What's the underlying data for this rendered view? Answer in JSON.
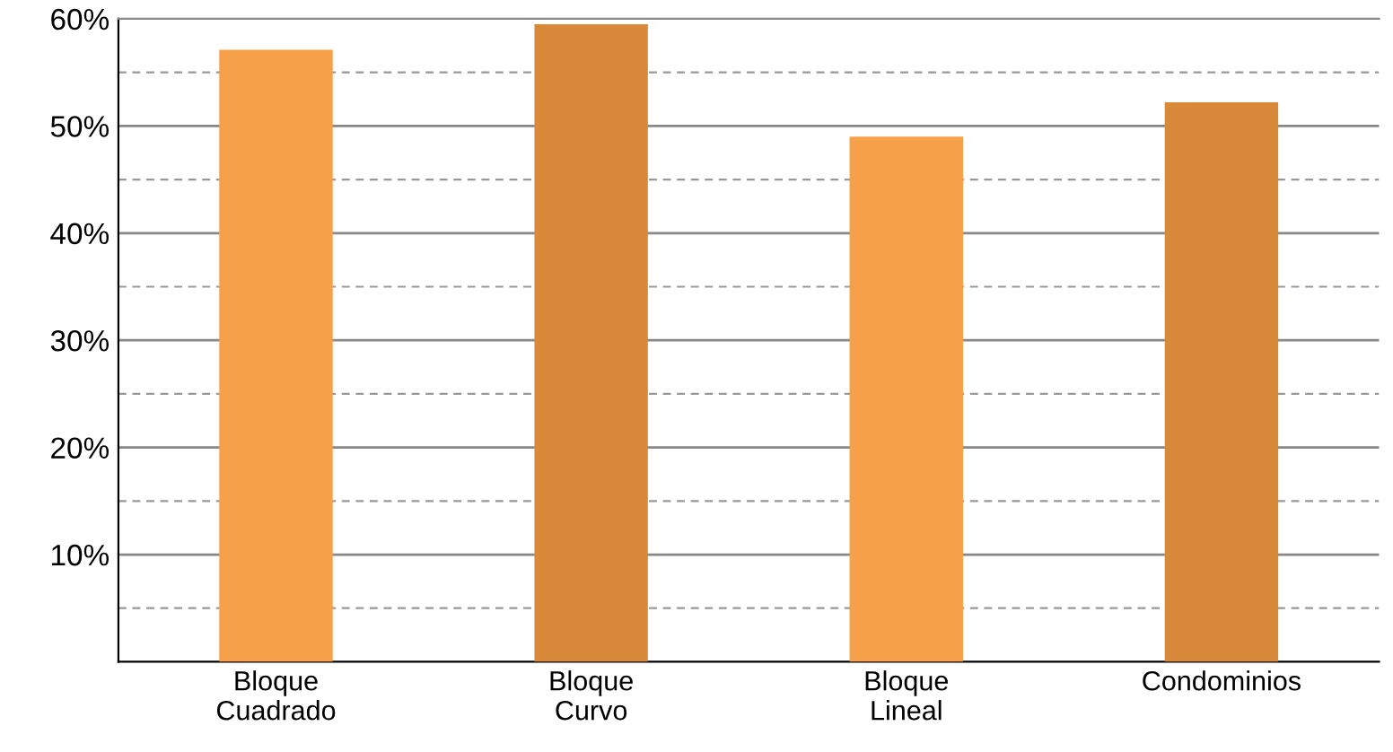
{
  "chart_data": {
    "type": "bar",
    "categories": [
      "Bloque\nCuadrado",
      "Bloque\nCurvo",
      "Bloque\nLineal",
      "Condominios"
    ],
    "values": [
      57.1,
      59.5,
      49.0,
      52.2
    ],
    "colors": [
      "#f7a04a",
      "#d8893a",
      "#f7a04a",
      "#d8893a"
    ],
    "ylim": [
      0,
      60
    ],
    "yticks": [
      {
        "value": 0,
        "label": null
      },
      {
        "value": 5,
        "label": null
      },
      {
        "value": 10,
        "label": "10%"
      },
      {
        "value": 15,
        "label": null
      },
      {
        "value": 20,
        "label": "20%"
      },
      {
        "value": 25,
        "label": null
      },
      {
        "value": 30,
        "label": "30%"
      },
      {
        "value": 35,
        "label": null
      },
      {
        "value": 40,
        "label": "40%"
      },
      {
        "value": 45,
        "label": null
      },
      {
        "value": 50,
        "label": "50%"
      },
      {
        "value": 55,
        "label": null
      },
      {
        "value": 60,
        "label": "60%"
      }
    ],
    "grid": "y"
  }
}
